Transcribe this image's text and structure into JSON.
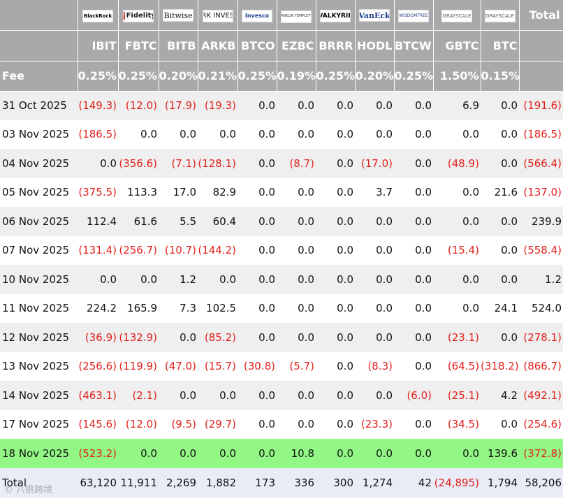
{
  "columns": [
    {
      "logo": "BlackRock",
      "logo_class": "blackrock",
      "ticker": "IBIT",
      "fee": "0.25%"
    },
    {
      "logo": "Fidelity",
      "logo_class": "fidelity",
      "ticker": "FBTC",
      "fee": "0.25%"
    },
    {
      "logo": "Bitwise",
      "logo_class": "bitwise",
      "ticker": "BITB",
      "fee": "0.20%"
    },
    {
      "logo": "ARK INVEST",
      "logo_class": "ark",
      "ticker": "ARKB",
      "fee": "0.21%"
    },
    {
      "logo": "Invesco",
      "logo_class": "invesco",
      "ticker": "BTCO",
      "fee": "0.25%"
    },
    {
      "logo": "FRANKLIN TEMPLETON",
      "logo_class": "franklin",
      "ticker": "EZBC",
      "fee": "0.19%"
    },
    {
      "logo": "VALKYRIE",
      "logo_class": "valkyrie",
      "ticker": "BRRR",
      "fee": "0.25%"
    },
    {
      "logo": "VanEck",
      "logo_class": "vaneck",
      "ticker": "HODL",
      "fee": "0.20%"
    },
    {
      "logo": "WISDOMTREE",
      "logo_class": "wisdomtree",
      "ticker": "BTCW",
      "fee": "0.25%"
    },
    {
      "logo": "GRAYSCALE",
      "logo_class": "grayscale",
      "ticker": "GBTC",
      "fee": "1.50%"
    },
    {
      "logo": "GRAYSCALE",
      "logo_class": "grayscale",
      "ticker": "BTC",
      "fee": "0.15%"
    }
  ],
  "header": {
    "total_label": "Total",
    "fee_label": "Fee"
  },
  "rows": [
    {
      "date": "31 Oct 2025",
      "values": [
        "(149.3)",
        "(12.0)",
        "(17.9)",
        "(19.3)",
        "0.0",
        "0.0",
        "0.0",
        "0.0",
        "0.0",
        "6.9",
        "0.0"
      ],
      "total": "(191.6)"
    },
    {
      "date": "03 Nov 2025",
      "values": [
        "(186.5)",
        "0.0",
        "0.0",
        "0.0",
        "0.0",
        "0.0",
        "0.0",
        "0.0",
        "0.0",
        "0.0",
        "0.0"
      ],
      "total": "(186.5)"
    },
    {
      "date": "04 Nov 2025",
      "values": [
        "0.0",
        "(356.6)",
        "(7.1)",
        "(128.1)",
        "0.0",
        "(8.7)",
        "0.0",
        "(17.0)",
        "0.0",
        "(48.9)",
        "0.0"
      ],
      "total": "(566.4)"
    },
    {
      "date": "05 Nov 2025",
      "values": [
        "(375.5)",
        "113.3",
        "17.0",
        "82.9",
        "0.0",
        "0.0",
        "0.0",
        "3.7",
        "0.0",
        "0.0",
        "21.6"
      ],
      "total": "(137.0)"
    },
    {
      "date": "06 Nov 2025",
      "values": [
        "112.4",
        "61.6",
        "5.5",
        "60.4",
        "0.0",
        "0.0",
        "0.0",
        "0.0",
        "0.0",
        "0.0",
        "0.0"
      ],
      "total": "239.9"
    },
    {
      "date": "07 Nov 2025",
      "values": [
        "(131.4)",
        "(256.7)",
        "(10.7)",
        "(144.2)",
        "0.0",
        "0.0",
        "0.0",
        "0.0",
        "0.0",
        "(15.4)",
        "0.0"
      ],
      "total": "(558.4)"
    },
    {
      "date": "10 Nov 2025",
      "values": [
        "0.0",
        "0.0",
        "1.2",
        "0.0",
        "0.0",
        "0.0",
        "0.0",
        "0.0",
        "0.0",
        "0.0",
        "0.0"
      ],
      "total": "1.2"
    },
    {
      "date": "11 Nov 2025",
      "values": [
        "224.2",
        "165.9",
        "7.3",
        "102.5",
        "0.0",
        "0.0",
        "0.0",
        "0.0",
        "0.0",
        "0.0",
        "24.1"
      ],
      "total": "524.0"
    },
    {
      "date": "12 Nov 2025",
      "values": [
        "(36.9)",
        "(132.9)",
        "0.0",
        "(85.2)",
        "0.0",
        "0.0",
        "0.0",
        "0.0",
        "0.0",
        "(23.1)",
        "0.0"
      ],
      "total": "(278.1)"
    },
    {
      "date": "13 Nov 2025",
      "values": [
        "(256.6)",
        "(119.9)",
        "(47.0)",
        "(15.7)",
        "(30.8)",
        "(5.7)",
        "0.0",
        "(8.3)",
        "0.0",
        "(64.5)",
        "(318.2)"
      ],
      "total": "(866.7)"
    },
    {
      "date": "14 Nov 2025",
      "values": [
        "(463.1)",
        "(2.1)",
        "0.0",
        "0.0",
        "0.0",
        "0.0",
        "0.0",
        "0.0",
        "(6.0)",
        "(25.1)",
        "4.2"
      ],
      "total": "(492.1)"
    },
    {
      "date": "17 Nov 2025",
      "values": [
        "(145.6)",
        "(12.0)",
        "(9.5)",
        "(29.7)",
        "0.0",
        "0.0",
        "0.0",
        "(23.3)",
        "0.0",
        "(34.5)",
        "0.0"
      ],
      "total": "(254.6)"
    },
    {
      "date": "18 Nov 2025",
      "values": [
        "(523.2)",
        "0.0",
        "0.0",
        "0.0",
        "0.0",
        "10.8",
        "0.0",
        "0.0",
        "0.0",
        "0.0",
        "139.6"
      ],
      "total": "(372.8)",
      "highlight": true
    }
  ],
  "totals": {
    "label": "Total",
    "values": [
      "63,120",
      "11,911",
      "2,269",
      "1,882",
      "173",
      "336",
      "300",
      "1,274",
      "42",
      "(24,895)",
      "1,794"
    ],
    "total": "58,206"
  },
  "watermark": "© 八锵跨境",
  "colors": {
    "header_bg": "#a9a9ab",
    "negative": "#e2211c",
    "highlight_row": "#92f784",
    "total_row": "#e9ecf6",
    "alt_row": "#efeff0"
  }
}
